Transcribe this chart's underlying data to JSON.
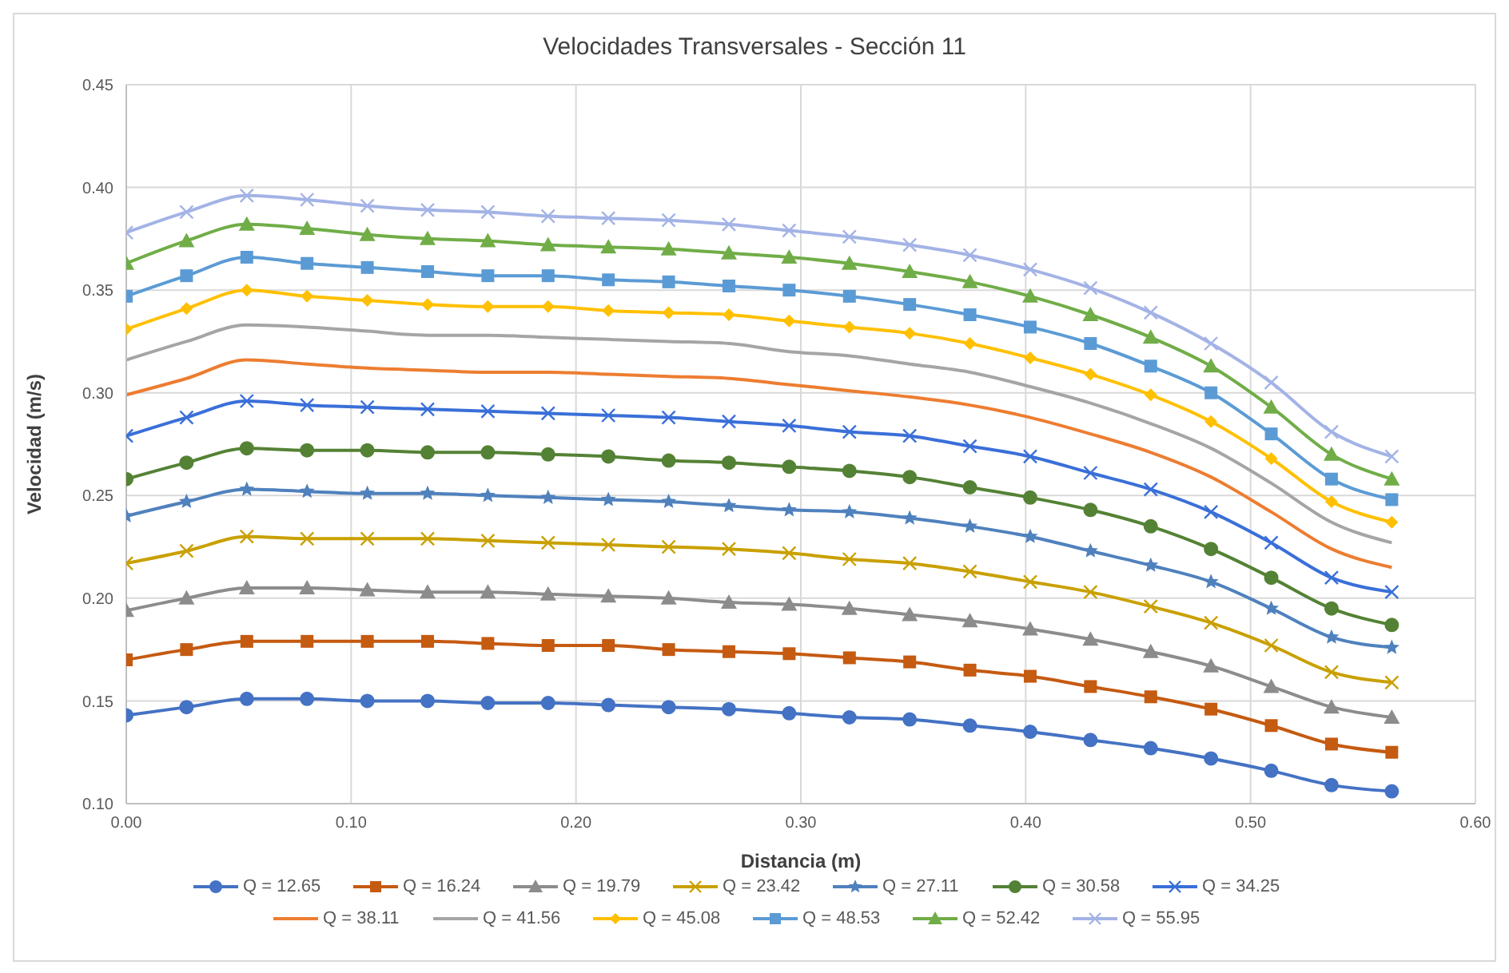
{
  "chart_data": {
    "type": "line",
    "title": "Velocidades Transversales - Sección 11",
    "xlabel": "Distancia (m)",
    "ylabel": "Velocidad (m/s)",
    "x": [
      0,
      0.0268,
      0.0536,
      0.0804,
      0.1072,
      0.134,
      0.1608,
      0.1876,
      0.2144,
      0.2412,
      0.268,
      0.2948,
      0.3216,
      0.3484,
      0.3752,
      0.402,
      0.4288,
      0.4556,
      0.4824,
      0.5092,
      0.536,
      0.5628
    ],
    "xlim": [
      0,
      0.6
    ],
    "xticks": [
      {
        "value": 0,
        "label": "0.00"
      },
      {
        "value": 0.1,
        "label": "0.10"
      },
      {
        "value": 0.2,
        "label": "0.20"
      },
      {
        "value": 0.3,
        "label": "0.30"
      },
      {
        "value": 0.4,
        "label": "0.40"
      },
      {
        "value": 0.5,
        "label": "0.50"
      },
      {
        "value": 0.6,
        "label": "0.60"
      }
    ],
    "ylim": [
      0.1,
      0.45
    ],
    "yticks": [
      {
        "value": 0.1,
        "label": "0.10"
      },
      {
        "value": 0.15,
        "label": "0.15"
      },
      {
        "value": 0.2,
        "label": "0.20"
      },
      {
        "value": 0.25,
        "label": "0.25"
      },
      {
        "value": 0.3,
        "label": "0.30"
      },
      {
        "value": 0.35,
        "label": "0.35"
      },
      {
        "value": 0.4,
        "label": "0.40"
      },
      {
        "value": 0.45,
        "label": "0.45"
      }
    ],
    "grid": true,
    "legend": "bottom",
    "series": [
      {
        "name": "Q = 12.65",
        "color": "#4472c4",
        "marker": "circle",
        "values": [
          0.143,
          0.147,
          0.151,
          0.151,
          0.15,
          0.15,
          0.149,
          0.149,
          0.148,
          0.147,
          0.146,
          0.144,
          0.142,
          0.141,
          0.138,
          0.135,
          0.131,
          0.127,
          0.122,
          0.116,
          0.109,
          0.106
        ]
      },
      {
        "name": "Q = 16.24",
        "color": "#c55a11",
        "marker": "square",
        "values": [
          0.17,
          0.175,
          0.179,
          0.179,
          0.179,
          0.179,
          0.178,
          0.177,
          0.177,
          0.175,
          0.174,
          0.173,
          0.171,
          0.169,
          0.165,
          0.162,
          0.157,
          0.152,
          0.146,
          0.138,
          0.129,
          0.125
        ]
      },
      {
        "name": "Q = 19.79",
        "color": "#8c8c8c",
        "marker": "triangle",
        "values": [
          0.194,
          0.2,
          0.205,
          0.205,
          0.204,
          0.203,
          0.203,
          0.202,
          0.201,
          0.2,
          0.198,
          0.197,
          0.195,
          0.192,
          0.189,
          0.185,
          0.18,
          0.174,
          0.167,
          0.157,
          0.147,
          0.142
        ]
      },
      {
        "name": "Q = 23.42",
        "color": "#c9a000",
        "marker": "cross",
        "values": [
          0.217,
          0.223,
          0.23,
          0.229,
          0.229,
          0.229,
          0.228,
          0.227,
          0.226,
          0.225,
          0.224,
          0.222,
          0.219,
          0.217,
          0.213,
          0.208,
          0.203,
          0.196,
          0.188,
          0.177,
          0.164,
          0.159
        ]
      },
      {
        "name": "Q = 27.11",
        "color": "#4f81bd",
        "marker": "star",
        "values": [
          0.24,
          0.247,
          0.253,
          0.252,
          0.251,
          0.251,
          0.25,
          0.249,
          0.248,
          0.247,
          0.245,
          0.243,
          0.242,
          0.239,
          0.235,
          0.23,
          0.223,
          0.216,
          0.208,
          0.195,
          0.181,
          0.176
        ]
      },
      {
        "name": "Q = 30.58",
        "color": "#548235",
        "marker": "circle",
        "values": [
          0.258,
          0.266,
          0.273,
          0.272,
          0.272,
          0.271,
          0.271,
          0.27,
          0.269,
          0.267,
          0.266,
          0.264,
          0.262,
          0.259,
          0.254,
          0.249,
          0.243,
          0.235,
          0.224,
          0.21,
          0.195,
          0.187
        ]
      },
      {
        "name": "Q = 34.25",
        "color": "#3a6fd8",
        "marker": "cross",
        "values": [
          0.279,
          0.288,
          0.296,
          0.294,
          0.293,
          0.292,
          0.291,
          0.29,
          0.289,
          0.288,
          0.286,
          0.284,
          0.281,
          0.279,
          0.274,
          0.269,
          0.261,
          0.253,
          0.242,
          0.227,
          0.21,
          0.203
        ]
      },
      {
        "name": "Q = 38.11",
        "color": "#ed7d31",
        "marker": "none",
        "values": [
          0.299,
          0.307,
          0.316,
          0.314,
          0.312,
          0.311,
          0.31,
          0.31,
          0.309,
          0.308,
          0.307,
          0.304,
          0.301,
          0.298,
          0.294,
          0.288,
          0.28,
          0.271,
          0.259,
          0.242,
          0.224,
          0.215
        ]
      },
      {
        "name": "Q = 41.56",
        "color": "#a5a5a5",
        "marker": "none",
        "values": [
          0.316,
          0.325,
          0.333,
          0.332,
          0.33,
          0.328,
          0.328,
          0.327,
          0.326,
          0.325,
          0.324,
          0.32,
          0.318,
          0.314,
          0.31,
          0.303,
          0.295,
          0.285,
          0.273,
          0.256,
          0.237,
          0.227
        ]
      },
      {
        "name": "Q = 45.08",
        "color": "#ffc000",
        "marker": "diamond",
        "values": [
          0.331,
          0.341,
          0.35,
          0.347,
          0.345,
          0.343,
          0.342,
          0.342,
          0.34,
          0.339,
          0.338,
          0.335,
          0.332,
          0.329,
          0.324,
          0.317,
          0.309,
          0.299,
          0.286,
          0.268,
          0.247,
          0.237
        ]
      },
      {
        "name": "Q = 48.53",
        "color": "#5b9bd5",
        "marker": "square",
        "values": [
          0.347,
          0.357,
          0.366,
          0.363,
          0.361,
          0.359,
          0.357,
          0.357,
          0.355,
          0.354,
          0.352,
          0.35,
          0.347,
          0.343,
          0.338,
          0.332,
          0.324,
          0.313,
          0.3,
          0.28,
          0.258,
          0.248
        ]
      },
      {
        "name": "Q = 52.42",
        "color": "#70ad47",
        "marker": "triangle",
        "values": [
          0.363,
          0.374,
          0.382,
          0.38,
          0.377,
          0.375,
          0.374,
          0.372,
          0.371,
          0.37,
          0.368,
          0.366,
          0.363,
          0.359,
          0.354,
          0.347,
          0.338,
          0.327,
          0.313,
          0.293,
          0.27,
          0.258
        ]
      },
      {
        "name": "Q = 55.95",
        "color": "#a3b3e6",
        "marker": "cross",
        "values": [
          0.378,
          0.388,
          0.396,
          0.394,
          0.391,
          0.389,
          0.388,
          0.386,
          0.385,
          0.384,
          0.382,
          0.379,
          0.376,
          0.372,
          0.367,
          0.36,
          0.351,
          0.339,
          0.324,
          0.305,
          0.281,
          0.269
        ]
      }
    ]
  }
}
